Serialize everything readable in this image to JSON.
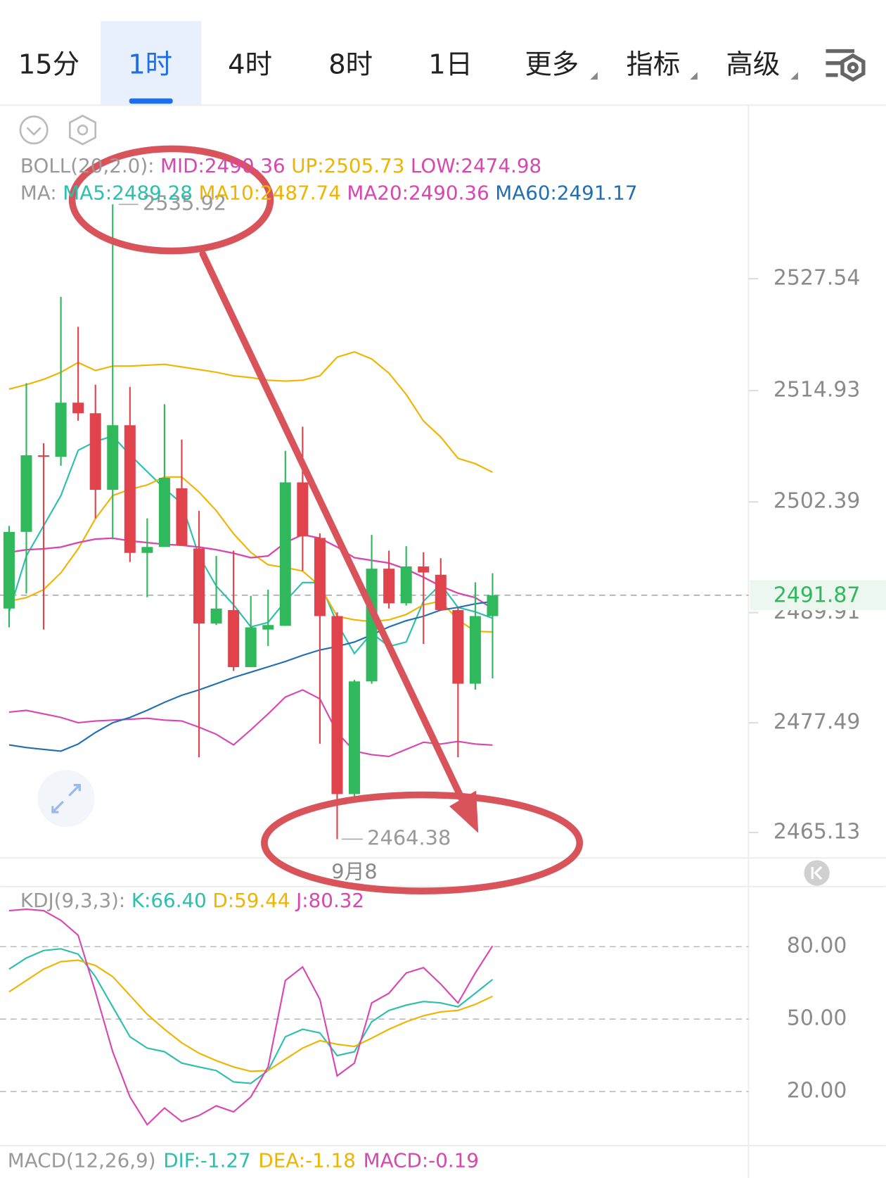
{
  "tabs": [
    "15分",
    "1时",
    "4时",
    "8时",
    "1日",
    "更多",
    "指标",
    "高级"
  ],
  "selected_tab": 1,
  "chart_data": [
    {
      "type": "candlestick",
      "categories": [
        null,
        null,
        null,
        null,
        null,
        null,
        null,
        null,
        null,
        null,
        null,
        null,
        null,
        null,
        null,
        null,
        null,
        null,
        null,
        null,
        "9月8",
        null,
        null,
        null,
        null,
        null,
        null,
        null,
        null
      ],
      "open": [
        2490.37,
        2499.01,
        2507.64,
        2507.47,
        2513.57,
        2512.38,
        2503.75,
        2511.03,
        2496.64,
        2497.31,
        2503.92,
        2497.14,
        2488.68,
        2490.2,
        2483.77,
        2488.0,
        2488.42,
        2504.59,
        2498.33,
        2489.52,
        2469.46,
        2482.16,
        2494.86,
        2490.96,
        2495.11,
        2494.18,
        2490.2,
        2481.9,
        2489.52
      ],
      "close": [
        2499.01,
        2507.64,
        2507.47,
        2513.57,
        2512.38,
        2503.75,
        2511.03,
        2496.64,
        2497.31,
        2505.1,
        2497.48,
        2488.68,
        2490.37,
        2483.77,
        2488.25,
        2488.51,
        2504.59,
        2498.5,
        2489.52,
        2469.46,
        2482.16,
        2494.86,
        2490.96,
        2495.11,
        2494.43,
        2490.2,
        2481.9,
        2489.52,
        2491.87
      ],
      "high": [
        2499.68,
        2515.77,
        2509.0,
        2525.51,
        2522.12,
        2515.6,
        2535.92,
        2515.35,
        2500.53,
        2513.4,
        2509.42,
        2501.38,
        2496.3,
        2496.89,
        2491.81,
        2492.49,
        2508.15,
        2510.86,
        2498.84,
        2489.95,
        2482.33,
        2498.67,
        2496.89,
        2497.4,
        2496.72,
        2496.04,
        2490.54,
        2493.33,
        2494.35
      ],
      "low": [
        2488.25,
        2492.06,
        2488.0,
        2506.46,
        2511.54,
        2500.53,
        2498.16,
        2495.62,
        2491.64,
        2497.31,
        2497.48,
        2473.61,
        2488.51,
        2483.34,
        2483.77,
        2486.14,
        2488.42,
        2494.6,
        2475.13,
        2464.38,
        2469.2,
        2481.9,
        2490.37,
        2490.71,
        2486.39,
        2490.2,
        2473.61,
        2481.23,
        2482.5
      ],
      "up_color": "#2fb85c",
      "down_color": "#e0434c",
      "ylim": [
        2462.43,
        2547.1
      ],
      "yticks": [
        2527.54,
        2514.93,
        2502.39,
        2489.91,
        2477.49,
        2465.13
      ],
      "current_price": 2491.87,
      "high_annotation": 6,
      "low_annotation": 19,
      "legend_rows": [
        "BOLL(20,2.0):",
        "MA:"
      ],
      "series": [
        {
          "name": "MID:2490.36",
          "row": 0,
          "color": "#d946b0",
          "values": [
            2496.7,
            2497.0,
            2497.1,
            2497.3,
            2497.8,
            2498.2,
            2498.3,
            2498.0,
            2497.8,
            2497.6,
            2497.5,
            2497.3,
            2497.0,
            2496.6,
            2496.1,
            2496.3,
            2497.8,
            2498.7,
            2498.3,
            2497.3,
            2496.1,
            2495.8,
            2495.5,
            2494.8,
            2493.9,
            2492.9,
            2492.1,
            2491.6,
            2490.36
          ]
        },
        {
          "name": "UP:2505.73",
          "row": 0,
          "color": "#f0b400",
          "values": [
            2515.1,
            2515.6,
            2516.2,
            2517.0,
            2518.1,
            2517.2,
            2517.7,
            2517.7,
            2517.8,
            2517.9,
            2517.6,
            2517.3,
            2517.0,
            2516.6,
            2516.4,
            2516.1,
            2516.0,
            2516.1,
            2516.6,
            2518.7,
            2519.3,
            2518.5,
            2516.9,
            2514.5,
            2511.5,
            2509.7,
            2507.3,
            2506.7,
            2505.73
          ]
        },
        {
          "name": "LOW:2474.98",
          "row": 0,
          "color": "#d946b0",
          "values": [
            2478.7,
            2478.9,
            2478.5,
            2478.1,
            2477.5,
            2477.7,
            2477.8,
            2477.9,
            2478.0,
            2477.8,
            2477.7,
            2477.0,
            2476.2,
            2475.0,
            2476.7,
            2478.5,
            2480.4,
            2481.2,
            2480.2,
            2476.4,
            2474.3,
            2473.9,
            2473.7,
            2474.5,
            2475.3,
            2475.1,
            2475.4,
            2475.1,
            2474.98
          ]
        },
        {
          "name": "MA5:2489.28",
          "row": 1,
          "color": "#2bbfae",
          "values": [
            2490.0,
            2496.3,
            2499.7,
            2503.1,
            2508.2,
            2509.2,
            2509.8,
            2507.7,
            2505.8,
            2503.9,
            2502.2,
            2496.3,
            2492.9,
            2490.8,
            2488.3,
            2488.8,
            2491.2,
            2493.3,
            2493.3,
            2488.7,
            2485.3,
            2487.6,
            2486.1,
            2486.6,
            2491.2,
            2493.1,
            2490.5,
            2490.0,
            2489.28
          ]
        },
        {
          "name": "MA10:2487.74",
          "row": 1,
          "color": "#f0b400",
          "values": [
            2491.2,
            2491.6,
            2492.5,
            2494.4,
            2497.1,
            2500.5,
            2503.1,
            2503.8,
            2504.3,
            2505.2,
            2505.2,
            2503.5,
            2501.4,
            2498.8,
            2496.7,
            2495.3,
            2495.0,
            2494.6,
            2492.9,
            2489.5,
            2489.1,
            2488.9,
            2489.1,
            2489.7,
            2490.8,
            2491.2,
            2489.1,
            2487.8,
            2487.74
          ]
        },
        {
          "name": "MA20:2490.36",
          "row": 1,
          "color": "#d946b0",
          "values": [
            2496.7,
            2497.0,
            2497.1,
            2497.3,
            2497.8,
            2498.2,
            2498.3,
            2498.0,
            2497.8,
            2497.6,
            2497.5,
            2497.3,
            2497.0,
            2496.6,
            2496.1,
            2496.3,
            2497.8,
            2498.7,
            2498.3,
            2497.3,
            2496.1,
            2495.8,
            2495.5,
            2494.8,
            2493.9,
            2492.9,
            2492.1,
            2491.6,
            2490.36
          ]
        },
        {
          "name": "MA60:2491.17",
          "row": 1,
          "color": "#1f6fb2",
          "values": [
            2475.0,
            2474.7,
            2474.5,
            2474.3,
            2475.1,
            2476.4,
            2477.5,
            2478.1,
            2478.9,
            2479.8,
            2480.6,
            2481.2,
            2481.9,
            2482.6,
            2483.2,
            2483.8,
            2484.4,
            2485.1,
            2485.7,
            2486.1,
            2486.6,
            2487.4,
            2488.3,
            2489.0,
            2489.5,
            2490.2,
            2490.5,
            2490.9,
            2491.17
          ]
        }
      ]
    },
    {
      "type": "line",
      "title": "KDJ(9,3,3):",
      "ylim": [
        -2.4,
        104.9
      ],
      "yticks": [
        {
          "value": 80,
          "label": "80.00"
        },
        {
          "value": 50,
          "label": "50.00"
        },
        {
          "value": 20,
          "label": "20.00"
        }
      ],
      "grid": true,
      "series": [
        {
          "name": "K:66.40",
          "color": "#2bbfae",
          "values": [
            70.7,
            75.3,
            78.4,
            79.1,
            76.9,
            67.6,
            55.1,
            42.7,
            38.0,
            36.5,
            31.8,
            30.2,
            28.7,
            24.0,
            23.4,
            28.7,
            42.7,
            45.8,
            44.3,
            34.9,
            36.5,
            48.9,
            53.6,
            55.8,
            57.3,
            56.7,
            55.1,
            60.7,
            66.4
          ]
        },
        {
          "name": "D:59.44",
          "color": "#f0b400",
          "values": [
            61.3,
            66.0,
            70.7,
            73.8,
            74.4,
            72.2,
            67.6,
            59.8,
            52.0,
            45.8,
            40.2,
            35.9,
            32.8,
            30.2,
            28.4,
            28.7,
            33.4,
            38.0,
            41.1,
            39.6,
            38.7,
            42.1,
            45.8,
            48.9,
            51.4,
            53.0,
            53.6,
            56.1,
            59.44
          ]
        },
        {
          "name": "J:80.32",
          "color": "#d946b0",
          "values": [
            94.9,
            95.5,
            94.9,
            90.9,
            84.7,
            61.3,
            36.5,
            17.8,
            6.3,
            13.2,
            7.6,
            10.1,
            14.1,
            11.6,
            17.8,
            30.2,
            66.0,
            71.6,
            58.2,
            26.5,
            31.8,
            56.7,
            60.7,
            69.1,
            71.3,
            64.5,
            56.7,
            69.1,
            80.32
          ]
        }
      ]
    }
  ],
  "macd": {
    "title": "MACD(12,26,9)",
    "items": [
      {
        "text": "DIF:-1.27",
        "color": "#2bbfae"
      },
      {
        "text": "DEA:-1.18",
        "color": "#f0b400"
      },
      {
        "text": "MACD:-0.19",
        "color": "#d946b0"
      }
    ]
  }
}
